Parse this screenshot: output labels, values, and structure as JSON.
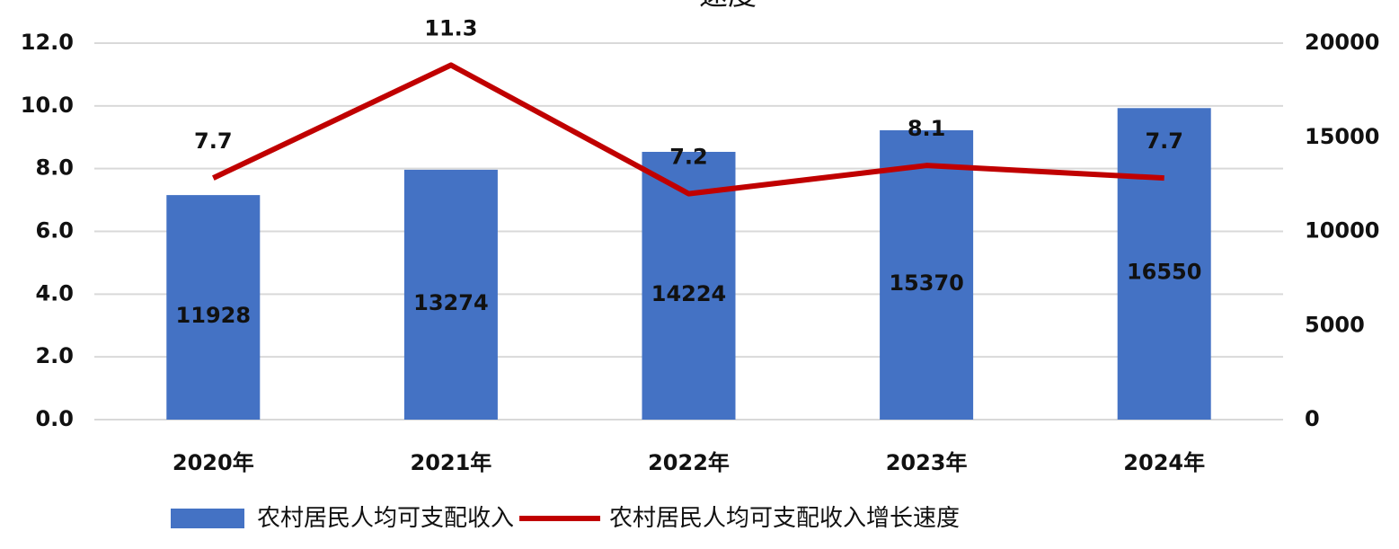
{
  "chart_data": {
    "type": "combo",
    "title": "速度",
    "categories": [
      "2020年",
      "2021年",
      "2022年",
      "2023年",
      "2024年"
    ],
    "series": [
      {
        "name": "农村居民人均可支配收入",
        "type": "bar",
        "axis": "y2",
        "color": "#4472c4",
        "values": [
          11928,
          13274,
          14224,
          15370,
          16550
        ]
      },
      {
        "name": "农村居民人均可支配收入增长速度",
        "type": "line",
        "color": "#c00000",
        "values": [
          7.7,
          11.3,
          7.2,
          8.1,
          7.7
        ]
      }
    ],
    "ylim": [
      0,
      12
    ],
    "yticks": [
      {
        "value": 0,
        "label": "0.0"
      },
      {
        "value": 2,
        "label": "2.0"
      },
      {
        "value": 4,
        "label": "4.0"
      },
      {
        "value": 6,
        "label": "6.0"
      },
      {
        "value": 8,
        "label": "8.0"
      },
      {
        "value": 10,
        "label": "10.0"
      },
      {
        "value": 12,
        "label": "12.0"
      }
    ],
    "y2lim": [
      0,
      20000
    ],
    "y2ticks": [
      0,
      5000,
      10000,
      15000,
      20000
    ],
    "grid": true
  }
}
